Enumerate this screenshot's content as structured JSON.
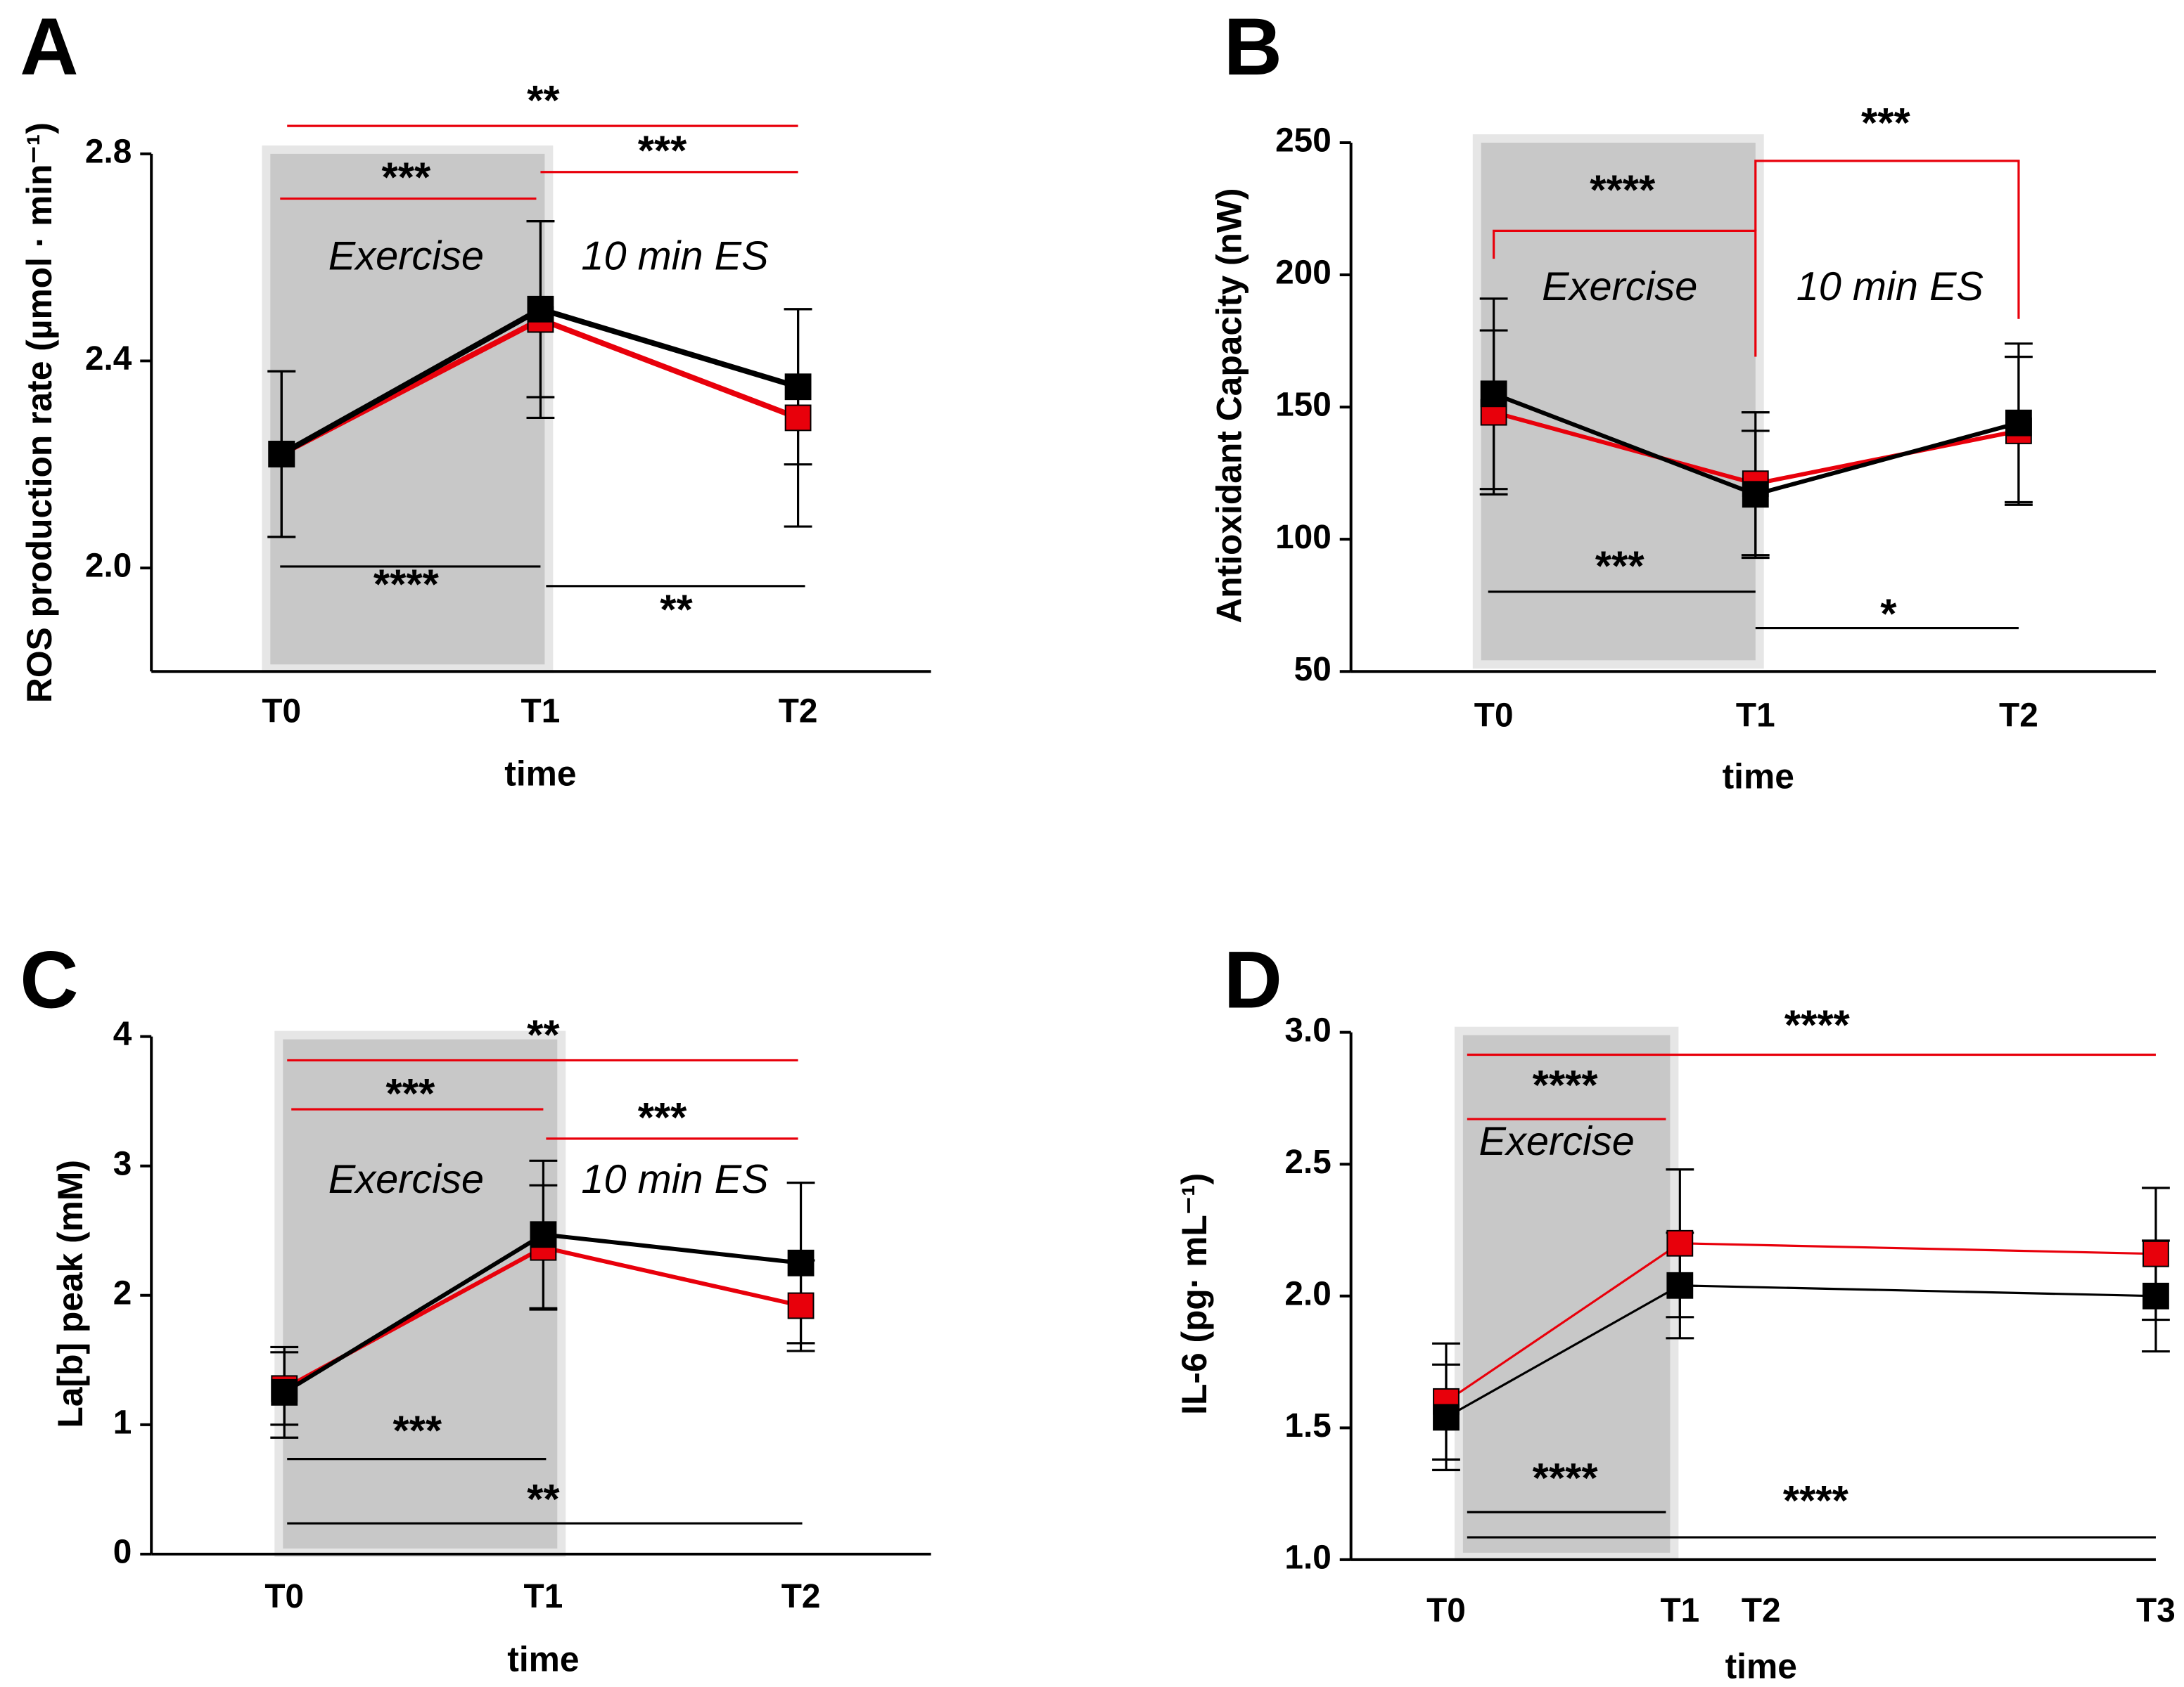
{
  "chart_data": [
    {
      "type": "line",
      "panel": "A",
      "ylabel": "ROS production rate (µmol · min⁻¹)",
      "xlabel": "time",
      "categories": [
        "T0",
        "T1",
        "T2"
      ],
      "series": [
        {
          "color": "#e8000b",
          "values": [
            2.22,
            2.48,
            2.29
          ],
          "errors": [
            0.16,
            0.19,
            0.21
          ]
        },
        {
          "color": "#000000",
          "values": [
            2.22,
            2.5,
            2.35
          ],
          "errors": [
            0.16,
            0.17,
            0.15
          ]
        }
      ],
      "ylim": [
        1.8,
        2.8
      ],
      "yticks": [
        {
          "value": 2.0,
          "label": "2.0"
        },
        2.4,
        2.8
      ],
      "annotations": [
        {
          "text": "**",
          "color": "#e8000b"
        },
        {
          "text": "***",
          "color": "#e8000b"
        },
        {
          "text": "***",
          "color": "#e8000b"
        },
        {
          "text": "****",
          "color": "#000000"
        },
        {
          "text": "**",
          "color": "#000000"
        }
      ],
      "region_labels": [
        "Exercise",
        "10 min ES"
      ]
    },
    {
      "type": "line",
      "panel": "B",
      "ylabel": "Antioxidant Capacity (nW)",
      "xlabel": "time",
      "categories": [
        "T0",
        "T1",
        "T2"
      ],
      "series": [
        {
          "color": "#e8000b",
          "values": [
            148,
            121,
            141
          ],
          "errors": [
            31,
            27,
            28
          ]
        },
        {
          "color": "#000000",
          "values": [
            155,
            117,
            144
          ],
          "errors": [
            36,
            24,
            30
          ]
        }
      ],
      "ylim": [
        50,
        250
      ],
      "yticks": [
        50,
        100,
        150,
        200,
        250
      ],
      "annotations": [
        {
          "text": "****",
          "color": "#e8000b"
        },
        {
          "text": "***",
          "color": "#e8000b"
        },
        {
          "text": "***",
          "color": "#000000"
        },
        {
          "text": "*",
          "color": "#000000"
        }
      ],
      "region_labels": [
        "Exercise",
        "10 min ES"
      ]
    },
    {
      "type": "line",
      "panel": "C",
      "ylabel": "La[b] peak (mM)",
      "xlabel": "time",
      "categories": [
        "T0",
        "T1",
        "T2"
      ],
      "series": [
        {
          "color": "#e8000b",
          "values": [
            1.28,
            2.37,
            1.92
          ],
          "errors": [
            0.28,
            0.48,
            0.35
          ]
        },
        {
          "color": "#000000",
          "values": [
            1.25,
            2.47,
            2.25
          ],
          "errors": [
            0.35,
            0.57,
            0.62
          ]
        }
      ],
      "ylim": [
        0,
        4
      ],
      "yticks": [
        0,
        1,
        2,
        3,
        4
      ],
      "annotations": [
        {
          "text": "**",
          "color": "#e8000b"
        },
        {
          "text": "***",
          "color": "#e8000b"
        },
        {
          "text": "***",
          "color": "#e8000b"
        },
        {
          "text": "***",
          "color": "#000000"
        },
        {
          "text": "**",
          "color": "#000000"
        }
      ],
      "region_labels": [
        "Exercise",
        "10 min ES"
      ]
    },
    {
      "type": "line",
      "panel": "D",
      "ylabel": "IL-6 (pg· mL⁻¹)",
      "xlabel": "time",
      "categories": [
        "T0",
        "T1",
        "T2",
        "T3"
      ],
      "series": [
        {
          "color": "#e8000b",
          "values": [
            1.6,
            2.2,
            null,
            2.16
          ],
          "errors": [
            0.22,
            0.28,
            null,
            0.25
          ]
        },
        {
          "color": "#000000",
          "values": [
            1.54,
            2.04,
            null,
            2.0
          ],
          "errors": [
            0.2,
            0.2,
            null,
            0.21
          ]
        }
      ],
      "ylim": [
        1.0,
        3.0
      ],
      "yticks": [
        {
          "value": 1.0,
          "label": "1.0"
        },
        1.5,
        {
          "value": 2.0,
          "label": "2.0"
        },
        2.5,
        {
          "value": 3.0,
          "label": "3.0"
        }
      ],
      "annotations": [
        {
          "text": "****",
          "color": "#e8000b"
        },
        {
          "text": "****",
          "color": "#e8000b"
        },
        {
          "text": "****",
          "color": "#000000"
        },
        {
          "text": "****",
          "color": "#000000"
        }
      ],
      "region_labels": [
        "Exercise"
      ]
    }
  ]
}
